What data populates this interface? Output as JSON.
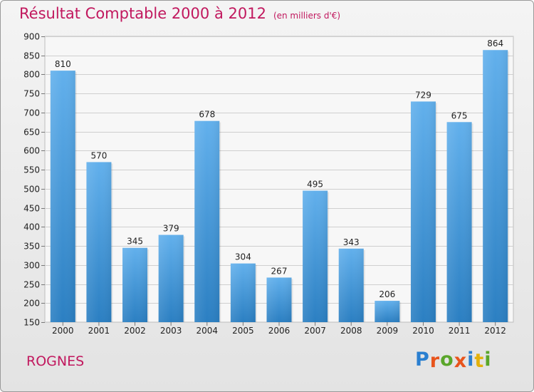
{
  "chart_data": {
    "type": "bar",
    "title": "Résultat Comptable 2000 à 2012",
    "subtitle": "(en milliers d'€)",
    "categories": [
      "2000",
      "2001",
      "2002",
      "2003",
      "2004",
      "2005",
      "2006",
      "2007",
      "2008",
      "2009",
      "2010",
      "2011",
      "2012"
    ],
    "values": [
      810,
      570,
      345,
      379,
      678,
      304,
      267,
      495,
      343,
      206,
      729,
      675,
      864
    ],
    "yticks": [
      150,
      200,
      250,
      300,
      350,
      400,
      450,
      500,
      550,
      600,
      650,
      700,
      750,
      800,
      850,
      900
    ],
    "ylim": [
      150,
      900
    ],
    "grid": true,
    "bar_color": "#3b8fd6",
    "xlabel": "",
    "ylabel": ""
  },
  "footer": {
    "commune": "ROGNES",
    "logo_letters": [
      "P",
      "r",
      "o",
      "x",
      "i",
      "t",
      "i"
    ],
    "logo_colors": [
      "#2a7fd0",
      "#e8541c",
      "#5aa62a",
      "#e8541c",
      "#2a7fd0",
      "#e3b10c",
      "#5aa62a"
    ]
  }
}
